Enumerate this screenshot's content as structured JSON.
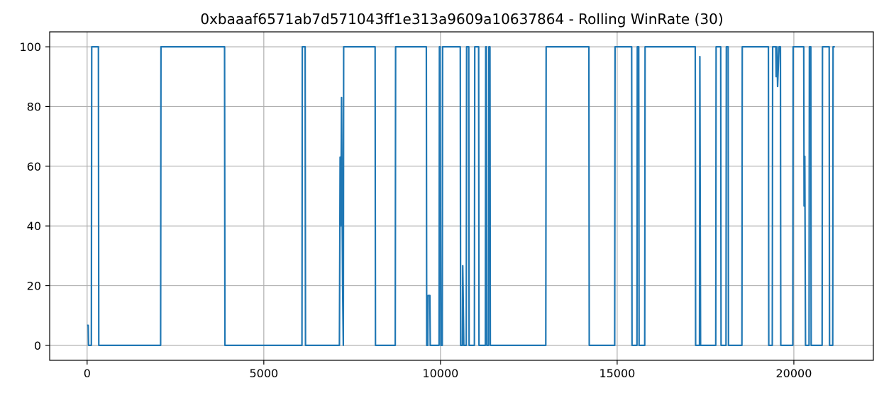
{
  "chart_data": {
    "type": "line",
    "title": "0xbaaaf6571ab7d571043ff1e313a9609a10637864 - Rolling WinRate (30)",
    "xlabel": "",
    "ylabel": "",
    "xlim": [
      -1060,
      22250
    ],
    "ylim": [
      -5,
      105
    ],
    "xticks": [
      0,
      5000,
      10000,
      15000,
      20000
    ],
    "xtick_labels": [
      "0",
      "5000",
      "10000",
      "15000",
      "20000"
    ],
    "yticks": [
      0,
      20,
      40,
      60,
      80,
      100
    ],
    "ytick_labels": [
      "0",
      "20",
      "40",
      "60",
      "80",
      "100"
    ],
    "grid": true,
    "series": [
      {
        "color": "#1f77b4",
        "points": [
          [
            0,
            6.7
          ],
          [
            30,
            6.7
          ],
          [
            40,
            0
          ],
          [
            120,
            0
          ],
          [
            130,
            100
          ],
          [
            320,
            100
          ],
          [
            330,
            0
          ],
          [
            2080,
            0
          ],
          [
            2090,
            100
          ],
          [
            3890,
            100
          ],
          [
            3900,
            0
          ],
          [
            6080,
            0
          ],
          [
            6090,
            100
          ],
          [
            6170,
            100
          ],
          [
            6180,
            0
          ],
          [
            7140,
            0
          ],
          [
            7150,
            30
          ],
          [
            7160,
            63
          ],
          [
            7180,
            40
          ],
          [
            7200,
            83
          ],
          [
            7230,
            20
          ],
          [
            7250,
            0
          ],
          [
            7260,
            100
          ],
          [
            8150,
            100
          ],
          [
            8160,
            0
          ],
          [
            8720,
            0
          ],
          [
            8730,
            100
          ],
          [
            9600,
            100
          ],
          [
            9610,
            0
          ],
          [
            9640,
            0
          ],
          [
            9650,
            16.7
          ],
          [
            9700,
            16.7
          ],
          [
            9710,
            0
          ],
          [
            9960,
            0
          ],
          [
            9970,
            100
          ],
          [
            9990,
            100
          ],
          [
            10010,
            0
          ],
          [
            10050,
            0
          ],
          [
            10060,
            100
          ],
          [
            10560,
            100
          ],
          [
            10570,
            0
          ],
          [
            10620,
            0
          ],
          [
            10630,
            26.7
          ],
          [
            10660,
            0
          ],
          [
            10730,
            0
          ],
          [
            10740,
            100
          ],
          [
            10800,
            100
          ],
          [
            10810,
            0
          ],
          [
            10960,
            0
          ],
          [
            10970,
            100
          ],
          [
            11080,
            100
          ],
          [
            11090,
            0
          ],
          [
            11270,
            0
          ],
          [
            11280,
            100
          ],
          [
            11300,
            100
          ],
          [
            11310,
            0
          ],
          [
            11360,
            0
          ],
          [
            11370,
            100
          ],
          [
            11400,
            100
          ],
          [
            11410,
            0
          ],
          [
            12980,
            0
          ],
          [
            12990,
            100
          ],
          [
            14200,
            100
          ],
          [
            14210,
            0
          ],
          [
            14930,
            0
          ],
          [
            14940,
            100
          ],
          [
            15410,
            100
          ],
          [
            15420,
            0
          ],
          [
            15560,
            0
          ],
          [
            15570,
            100
          ],
          [
            15610,
            100
          ],
          [
            15620,
            0
          ],
          [
            15780,
            0
          ],
          [
            15790,
            100
          ],
          [
            17210,
            100
          ],
          [
            17220,
            0
          ],
          [
            17330,
            0
          ],
          [
            17340,
            96.7
          ],
          [
            17360,
            0
          ],
          [
            17790,
            0
          ],
          [
            17800,
            100
          ],
          [
            17930,
            100
          ],
          [
            17940,
            0
          ],
          [
            18080,
            0
          ],
          [
            18090,
            100
          ],
          [
            18140,
            100
          ],
          [
            18150,
            0
          ],
          [
            18530,
            0
          ],
          [
            18540,
            100
          ],
          [
            19280,
            100
          ],
          [
            19290,
            0
          ],
          [
            19390,
            0
          ],
          [
            19400,
            100
          ],
          [
            19490,
            100
          ],
          [
            19500,
            90
          ],
          [
            19520,
            100
          ],
          [
            19540,
            86.7
          ],
          [
            19580,
            100
          ],
          [
            19620,
            100
          ],
          [
            19630,
            0
          ],
          [
            19970,
            0
          ],
          [
            19980,
            100
          ],
          [
            20280,
            100
          ],
          [
            20290,
            46.7
          ],
          [
            20310,
            63.3
          ],
          [
            20330,
            0
          ],
          [
            20430,
            0
          ],
          [
            20440,
            100
          ],
          [
            20480,
            100
          ],
          [
            20490,
            0
          ],
          [
            20800,
            0
          ],
          [
            20810,
            100
          ],
          [
            21000,
            100
          ],
          [
            21010,
            0
          ],
          [
            21100,
            0
          ],
          [
            21110,
            100
          ],
          [
            21160,
            100
          ]
        ]
      }
    ]
  }
}
